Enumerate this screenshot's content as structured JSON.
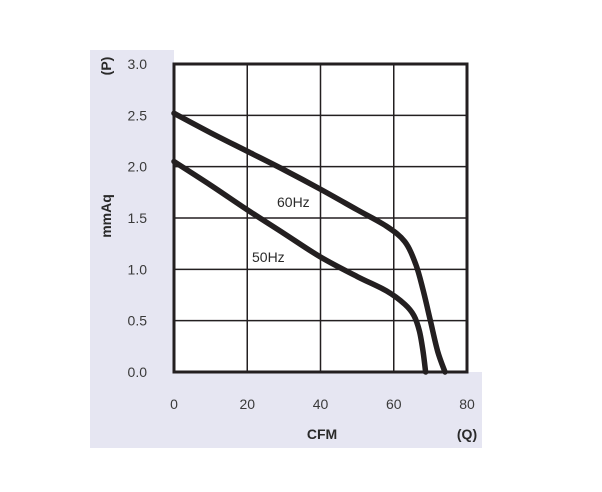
{
  "chart_data": {
    "type": "line",
    "title": "",
    "xlabel": "CFM",
    "x_unit": "(Q)",
    "ylabel": "mmAq",
    "y_unit": "(P)",
    "xlim": [
      0,
      80
    ],
    "ylim": [
      0,
      3.0
    ],
    "x_ticks": [
      "0",
      "20",
      "40",
      "60",
      "80"
    ],
    "y_ticks": [
      "0.0",
      "0.5",
      "1.0",
      "1.5",
      "2.0",
      "2.5",
      "3.0"
    ],
    "grid": true,
    "legend": "none",
    "series": [
      {
        "name": "60Hz",
        "x": [
          0,
          10,
          20,
          30,
          40,
          50,
          58,
          63,
          66,
          68,
          70,
          72,
          74
        ],
        "y": [
          2.52,
          2.33,
          2.15,
          1.97,
          1.78,
          1.58,
          1.42,
          1.27,
          1.05,
          0.8,
          0.5,
          0.2,
          0.0
        ],
        "color": "#231f20"
      },
      {
        "name": "50Hz",
        "x": [
          0,
          10,
          20,
          30,
          40,
          50,
          58,
          63,
          65.5,
          67,
          68,
          68.7
        ],
        "y": [
          2.05,
          1.82,
          1.58,
          1.35,
          1.12,
          0.93,
          0.79,
          0.66,
          0.55,
          0.4,
          0.2,
          0.0
        ],
        "color": "#231f20"
      }
    ],
    "colors": {
      "panel_bg": "#e6e6f2",
      "plot_bg": "#ffffff",
      "line": "#231f20",
      "grid": "#231f20"
    }
  }
}
